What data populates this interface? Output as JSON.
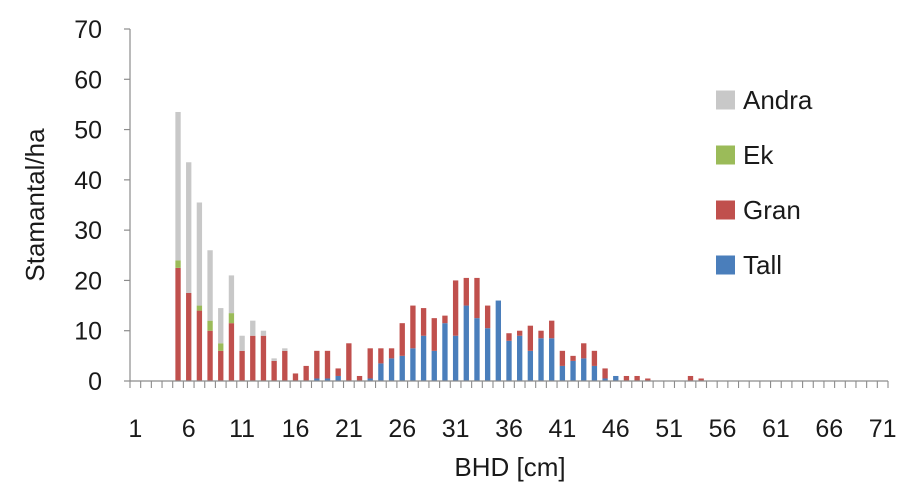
{
  "chart_data": {
    "type": "bar",
    "stacked": true,
    "title": "",
    "xlabel": "BHD [cm]",
    "ylabel": "Stamantal/ha",
    "ylim": [
      0,
      70
    ],
    "yticks": [
      0,
      10,
      20,
      30,
      40,
      50,
      60,
      70
    ],
    "xlim": [
      1,
      72
    ],
    "xtick_labels": [
      1,
      6,
      11,
      16,
      21,
      26,
      31,
      36,
      41,
      46,
      51,
      56,
      61,
      66,
      71
    ],
    "grid": false,
    "legend_position": "right",
    "categories": [
      1,
      2,
      3,
      4,
      5,
      6,
      7,
      8,
      9,
      10,
      11,
      12,
      13,
      14,
      15,
      16,
      17,
      18,
      19,
      20,
      21,
      22,
      23,
      24,
      25,
      26,
      27,
      28,
      29,
      30,
      31,
      32,
      33,
      34,
      35,
      36,
      37,
      38,
      39,
      40,
      41,
      42,
      43,
      44,
      45,
      46,
      47,
      48,
      49,
      50,
      51,
      52,
      53,
      54,
      55,
      56,
      57,
      58,
      59,
      60,
      61,
      62,
      63,
      64,
      65,
      66,
      67,
      68,
      69,
      70,
      71
    ],
    "series": [
      {
        "name": "Tall",
        "color": "#4a7ebb",
        "values": [
          0,
          0,
          0,
          0,
          0,
          0,
          0,
          0,
          0,
          0,
          0,
          0,
          0,
          0,
          0,
          0,
          0,
          0.5,
          0.5,
          1,
          0,
          0,
          0.5,
          3.5,
          4.5,
          5,
          6.5,
          9,
          6,
          11.5,
          9,
          15,
          12.5,
          10.5,
          16,
          8,
          9,
          6,
          8.5,
          8.5,
          3,
          4,
          4.5,
          3,
          0.5,
          1,
          0,
          0,
          0,
          0,
          0,
          0,
          0,
          0,
          0,
          0,
          0,
          0,
          0,
          0,
          0,
          0,
          0,
          0,
          0,
          0,
          0,
          0,
          0,
          0,
          0
        ]
      },
      {
        "name": "Gran",
        "color": "#c0504d",
        "values": [
          0,
          0,
          0,
          0,
          22.5,
          17.5,
          14,
          10,
          6,
          11.5,
          6,
          9,
          9,
          4,
          6,
          1.5,
          3,
          5.5,
          5.5,
          1.5,
          7.5,
          1,
          6,
          3,
          2,
          6.5,
          8.5,
          5.5,
          6.5,
          1.5,
          11,
          5.5,
          8,
          4.5,
          0,
          1.5,
          1,
          5,
          1.5,
          3.5,
          3,
          1,
          3,
          3,
          2,
          0,
          1,
          1,
          0.5,
          0,
          0,
          0,
          1,
          0.5,
          0,
          0,
          0,
          0,
          0,
          0,
          0,
          0,
          0,
          0,
          0,
          0,
          0,
          0,
          0,
          0,
          0
        ]
      },
      {
        "name": "Ek",
        "color": "#9bbb59",
        "values": [
          0,
          0,
          0,
          0,
          1.5,
          0,
          1,
          2,
          1.5,
          2,
          0,
          0,
          0,
          0,
          0,
          0,
          0,
          0,
          0,
          0,
          0,
          0,
          0,
          0,
          0,
          0,
          0,
          0,
          0,
          0,
          0,
          0,
          0,
          0,
          0,
          0,
          0,
          0,
          0,
          0,
          0,
          0,
          0,
          0,
          0,
          0,
          0,
          0,
          0,
          0,
          0,
          0,
          0,
          0,
          0,
          0,
          0,
          0,
          0,
          0,
          0,
          0,
          0,
          0,
          0,
          0,
          0,
          0,
          0,
          0,
          0
        ]
      },
      {
        "name": "Andra",
        "color": "#c8c8c8",
        "values": [
          0,
          0,
          0,
          0,
          29.5,
          26,
          20.5,
          14,
          7,
          7.5,
          3,
          3,
          1,
          0.5,
          0.5,
          0,
          0,
          0,
          0,
          0,
          0,
          0,
          0,
          0,
          0,
          0,
          0,
          0,
          0,
          0,
          0,
          0,
          0,
          0,
          0,
          0,
          0,
          0,
          0,
          0,
          0,
          0,
          0,
          0,
          0,
          0,
          0,
          0,
          0,
          0,
          0,
          0,
          0,
          0,
          0,
          0,
          0,
          0,
          0,
          0,
          0,
          0,
          0,
          0,
          0,
          0,
          0,
          0,
          0,
          0,
          0
        ]
      }
    ],
    "legend_order": [
      "Andra",
      "Ek",
      "Gran",
      "Tall"
    ]
  }
}
